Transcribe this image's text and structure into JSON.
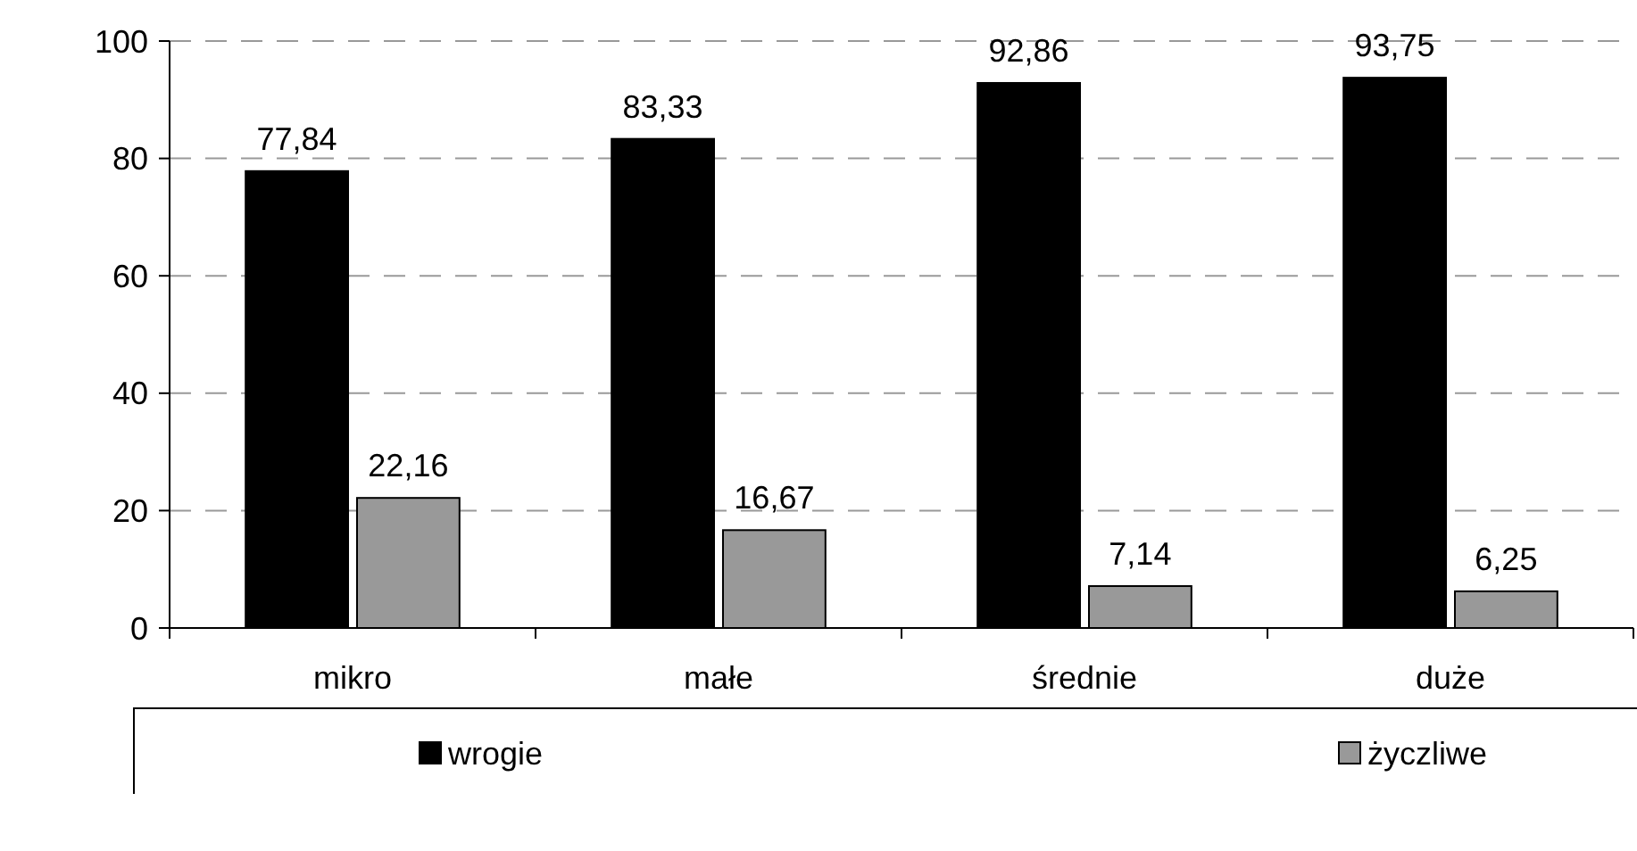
{
  "chart_data": {
    "type": "bar",
    "categories": [
      "mikro",
      "małe",
      "średnie",
      "duże"
    ],
    "series": [
      {
        "name": "wrogie",
        "color": "#000000",
        "values": [
          77.84,
          83.33,
          92.86,
          93.75
        ],
        "value_labels": [
          "77,84",
          "83,33",
          "92,86",
          "93,75"
        ]
      },
      {
        "name": "życzliwe",
        "color": "#999999",
        "values": [
          22.16,
          16.67,
          7.14,
          6.25
        ],
        "value_labels": [
          "22,16",
          "16,67",
          "7,14",
          "6,25"
        ]
      }
    ],
    "ylim": [
      0,
      100
    ],
    "yticks": [
      0,
      20,
      40,
      60,
      80,
      100
    ],
    "grid": "y",
    "legend": "bottom"
  }
}
